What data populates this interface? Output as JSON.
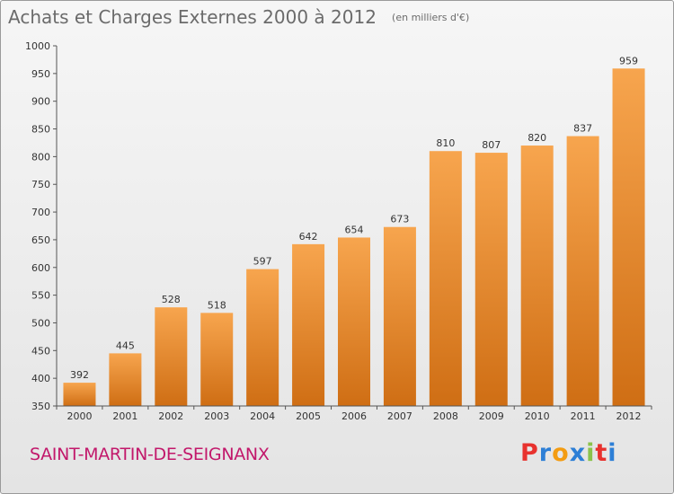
{
  "chart_data": {
    "type": "bar",
    "title": "Achats et Charges Externes 2000 à 2012",
    "unit": "(en milliers d'€)",
    "categories": [
      "2000",
      "2001",
      "2002",
      "2003",
      "2004",
      "2005",
      "2006",
      "2007",
      "2008",
      "2009",
      "2010",
      "2011",
      "2012"
    ],
    "values": [
      392,
      445,
      528,
      518,
      597,
      642,
      654,
      673,
      810,
      807,
      820,
      837,
      959
    ],
    "ylim": [
      350,
      1000
    ],
    "yticks": [
      350,
      400,
      450,
      500,
      550,
      600,
      650,
      700,
      750,
      800,
      850,
      900,
      950,
      1000
    ],
    "grid": false,
    "bar_color_top": "#f7a54e",
    "bar_color_bottom": "#cf6e14"
  },
  "place": "SAINT-MARTIN-DE-SEIGNANX",
  "logo": {
    "letters": [
      "P",
      "r",
      "o",
      "x",
      "i",
      "t",
      "i"
    ],
    "colors": [
      "#e8322e",
      "#2d7fd6",
      "#f39c12",
      "#2d7fd6",
      "#8bc34a",
      "#e8322e",
      "#2d7fd6"
    ]
  }
}
